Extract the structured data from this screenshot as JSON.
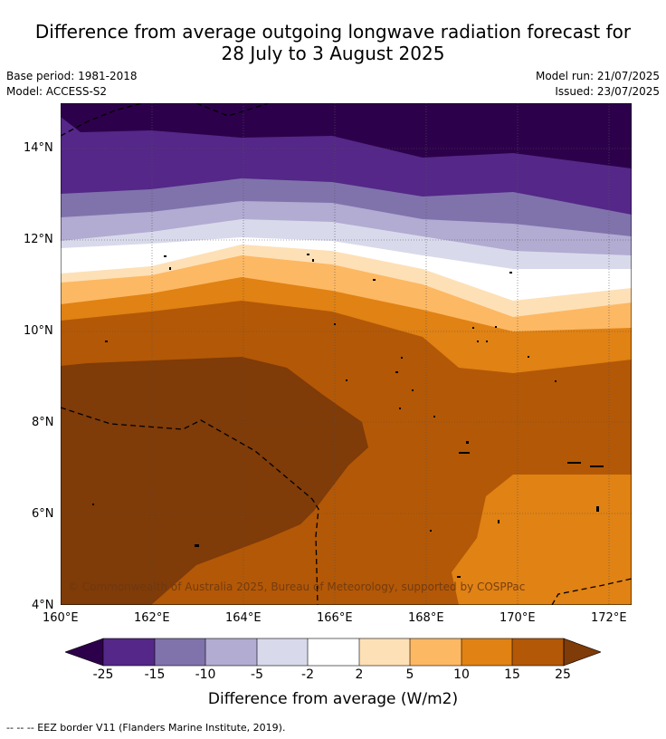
{
  "header": {
    "title_line1": "Difference from average outgoing longwave radiation forecast for",
    "title_line2": "28 July to 3 August 2025",
    "base_period": "Base period: 1981-2018",
    "model": "Model: ACCESS-S2",
    "model_run": "Model run: 21/07/2025",
    "issued": "Issued: 23/07/2025"
  },
  "map": {
    "copyright": "© Commonwealth of Australia 2025, Bureau of Meteorology, supported by COSPPac",
    "lon_labels": [
      "160°E",
      "162°E",
      "164°E",
      "166°E",
      "168°E",
      "170°E",
      "172°E"
    ],
    "lat_labels": [
      "14°N",
      "12°N",
      "10°N",
      "8°N",
      "6°N",
      "4°N"
    ],
    "lon_range": [
      160,
      172.5
    ],
    "lat_range": [
      4,
      15
    ]
  },
  "colorbar": {
    "tick_labels": [
      "-25",
      "-15",
      "-10",
      "-5",
      "-2",
      "2",
      "5",
      "10",
      "15",
      "25"
    ],
    "unit_label": "Difference from average (W/m2)",
    "colors": {
      "below_-25": "#2d004b",
      "-25_-15": "#542788",
      "-15_-10": "#8073ac",
      "-10_-5": "#b2abd2",
      "-5_-2": "#d8daeb",
      "-2_2": "#ffffff",
      "2_5": "#fee0b6",
      "5_10": "#fdb863",
      "10_15": "#e08214",
      "15_25": "#b35806",
      "above_25": "#7f3b08"
    }
  },
  "footnote": "--  --  -- EEZ border V11 (Flanders Marine Institute, 2019)."
}
